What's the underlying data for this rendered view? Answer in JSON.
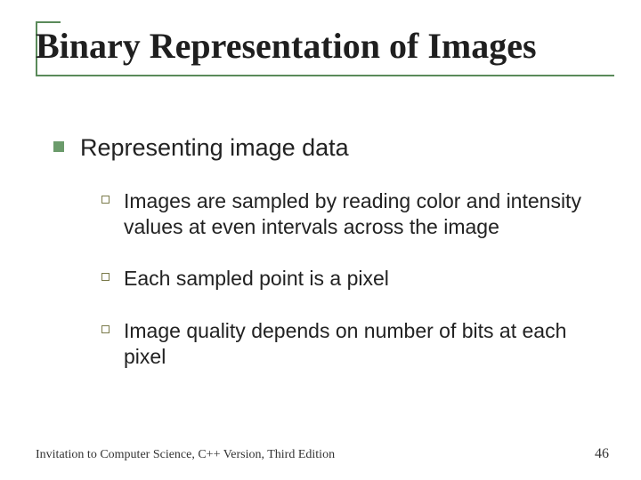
{
  "colors": {
    "accent": "#5a8a5a",
    "bullet_fill": "#6b9b6b",
    "sub_bullet_border": "#7a7a4a",
    "underline": "#5a8a5a"
  },
  "title": "Binary Representation of Images",
  "lvl1_text": "Representing image data",
  "subs": [
    "Images are sampled by reading color and intensity values at even intervals across the image",
    "Each sampled point is a pixel",
    "Image quality depends on number of bits at each pixel"
  ],
  "footer": "Invitation to Computer Science, C++ Version, Third Edition",
  "page_number": "46"
}
